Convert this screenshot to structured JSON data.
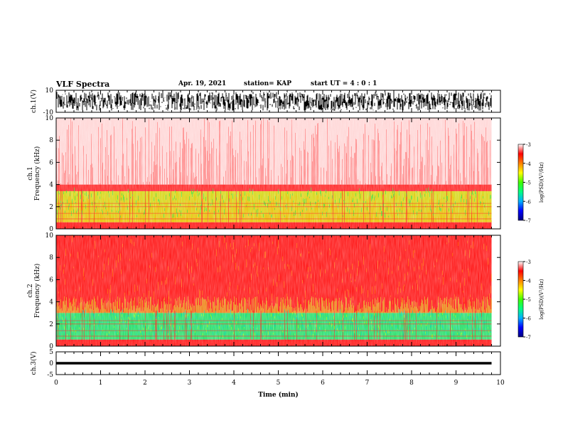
{
  "header": {
    "title": "VLF Spectra",
    "date": "Apr. 19, 2021",
    "station": "station= KAP",
    "start_ut": "start  UT  =   4 : 0  : 1"
  },
  "colorbar": {
    "label": "log(PSD)(V²/Hz)",
    "ticks": [
      "-3",
      "-4",
      "-5",
      "-6",
      "-7"
    ],
    "colors": [
      "#000080",
      "#0000ff",
      "#00b0ff",
      "#00ff80",
      "#40ff00",
      "#ffff00",
      "#ff8000",
      "#ff0000",
      "#ffffff"
    ]
  },
  "chart_data": [
    {
      "type": "line",
      "name": "ch1-waveform",
      "ylabel": "ch.1(V)",
      "ylim": [
        -10,
        10
      ],
      "yticks": [
        "10",
        "-10"
      ],
      "xlim": [
        0,
        10
      ],
      "description_values": "dense noise filling roughly -8 to +8 V across 0-9.8 min"
    },
    {
      "type": "heatmap",
      "name": "ch1-spectrogram",
      "ylabel": "ch.1\nFrequency (kHz)",
      "ylim": [
        0,
        10
      ],
      "yticks": [
        "0",
        "2",
        "4",
        "6",
        "8",
        "10"
      ],
      "xlim": [
        0,
        9.8
      ],
      "bands": [
        {
          "from_khz": 0,
          "to_khz": 0.6,
          "color": "#ff2020"
        },
        {
          "from_khz": 0.6,
          "to_khz": 3.4,
          "color": "#d8d820"
        },
        {
          "from_khz": 3.4,
          "to_khz": 4.0,
          "color": "#ff3030"
        },
        {
          "from_khz": 4.0,
          "to_khz": 10,
          "color": "#ffd8d8"
        }
      ]
    },
    {
      "type": "heatmap",
      "name": "ch2-spectrogram",
      "ylabel": "ch.2\nFrequency (kHz)",
      "ylim": [
        0,
        10
      ],
      "yticks": [
        "0",
        "2",
        "4",
        "6",
        "8",
        "10"
      ],
      "xlim": [
        0,
        9.8
      ],
      "bands": [
        {
          "from_khz": 0,
          "to_khz": 0.6,
          "color": "#ff2020"
        },
        {
          "from_khz": 0.6,
          "to_khz": 3.0,
          "color": "#30e070"
        },
        {
          "from_khz": 3.0,
          "to_khz": 10,
          "color": "#ff2020"
        }
      ]
    },
    {
      "type": "line",
      "name": "ch3-waveform",
      "ylabel": "ch.3(V)",
      "ylim": [
        -5,
        5
      ],
      "yticks": [
        "5",
        "0",
        "-5"
      ],
      "xlim": [
        0,
        10
      ],
      "xlabel": "Time (min)",
      "xticks": [
        "0",
        "1",
        "2",
        "3",
        "4",
        "5",
        "6",
        "7",
        "8",
        "9",
        "10"
      ],
      "level": [
        -0.1,
        0.1
      ]
    }
  ]
}
